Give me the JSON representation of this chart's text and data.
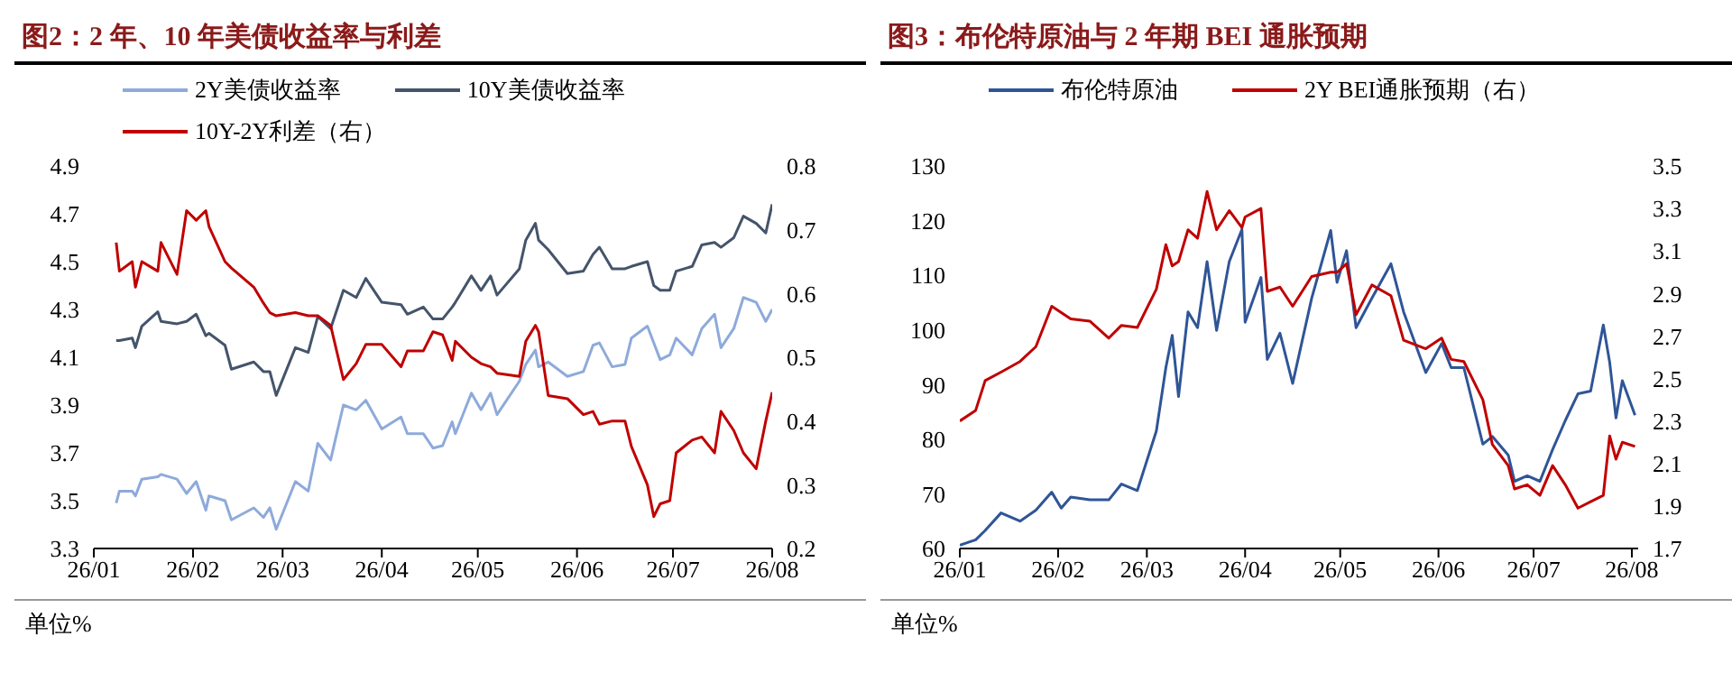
{
  "chart_data": [
    {
      "type": "line",
      "title": "图2：2 年、10 年美债收益率与利差",
      "annotations": [
        "单位%"
      ],
      "legend": "top",
      "grid": false,
      "marker": "none",
      "line_style": "solid",
      "x": [
        "--01-08",
        "--01-09",
        "--01-13",
        "--01-14",
        "--01-16",
        "--01-21",
        "--01-22",
        "--01-27",
        "--01-30",
        "--02-02",
        "--02-05",
        "--02-06",
        "--02-11",
        "--02-13",
        "--02-20",
        "--02-23",
        "--02-25",
        "--02-27",
        "--03-05",
        "--03-09",
        "--03-12",
        "--03-16",
        "--03-20",
        "--03-24",
        "--03-27",
        "--04-01",
        "--04-07",
        "--04-09",
        "--04-14",
        "--04-17",
        "--04-20",
        "--04-23",
        "--04-24",
        "--04-29",
        "--05-02",
        "--05-05",
        "--05-07",
        "--05-14",
        "--05-16",
        "--05-19",
        "--05-20",
        "--05-23",
        "--05-29",
        "--06-03",
        "--06-06",
        "--06-08",
        "--06-12",
        "--06-16",
        "--06-18",
        "--06-23",
        "--06-25",
        "--06-27",
        "--06-30",
        "--07-02",
        "--07-07",
        "--07-10",
        "--07-14",
        "--07-16",
        "--07-20",
        "--07-23",
        "--07-27",
        "--07-30",
        "--08-01"
      ],
      "xlim": [
        "--01-01",
        "--08-01"
      ],
      "xticks": [
        {
          "value": "--01-01",
          "label": "26/01"
        },
        {
          "value": "--02-01",
          "label": "26/02"
        },
        {
          "value": "--03-01",
          "label": "26/03"
        },
        {
          "value": "--04-01",
          "label": "26/04"
        },
        {
          "value": "--05-01",
          "label": "26/05"
        },
        {
          "value": "--06-01",
          "label": "26/06"
        },
        {
          "value": "--07-01",
          "label": "26/07"
        },
        {
          "value": "--08-01",
          "label": "26/08"
        }
      ],
      "ylim": [
        3.3,
        4.9
      ],
      "yticks": [
        3.3,
        3.5,
        3.7,
        3.9,
        4.1,
        4.3,
        4.5,
        4.7,
        4.9
      ],
      "y2lim": [
        0.2,
        0.8
      ],
      "y2ticks": [
        0.2,
        0.3,
        0.4,
        0.5,
        0.6,
        0.7,
        0.8
      ],
      "series": [
        {
          "name": "2Y美债收益率",
          "color": "#8eaadb",
          "values": [
            3.49,
            3.54,
            3.54,
            3.52,
            3.59,
            3.6,
            3.61,
            3.59,
            3.53,
            3.58,
            3.46,
            3.52,
            3.5,
            3.42,
            3.47,
            3.43,
            3.47,
            3.38,
            3.58,
            3.54,
            3.74,
            3.67,
            3.9,
            3.88,
            3.92,
            3.8,
            3.85,
            3.78,
            3.78,
            3.72,
            3.73,
            3.83,
            3.78,
            3.95,
            3.88,
            3.95,
            3.86,
            4.0,
            4.07,
            4.13,
            4.06,
            4.08,
            4.02,
            4.04,
            4.15,
            4.16,
            4.06,
            4.07,
            4.18,
            4.23,
            4.16,
            4.09,
            4.11,
            4.18,
            4.11,
            4.22,
            4.28,
            4.14,
            4.22,
            4.35,
            4.33,
            4.25,
            4.3
          ]
        },
        {
          "name": "10Y美债收益率",
          "color": "#44546a",
          "values": [
            4.17,
            4.17,
            4.18,
            4.14,
            4.23,
            4.29,
            4.25,
            4.24,
            4.25,
            4.28,
            4.19,
            4.2,
            4.15,
            4.05,
            4.08,
            4.04,
            4.04,
            3.94,
            4.14,
            4.12,
            4.27,
            4.22,
            4.38,
            4.35,
            4.43,
            4.33,
            4.32,
            4.28,
            4.31,
            4.26,
            4.26,
            4.31,
            4.33,
            4.44,
            4.38,
            4.44,
            4.36,
            4.47,
            4.59,
            4.66,
            4.59,
            4.55,
            4.45,
            4.46,
            4.53,
            4.56,
            4.47,
            4.47,
            4.48,
            4.5,
            4.4,
            4.38,
            4.38,
            4.46,
            4.48,
            4.57,
            4.58,
            4.56,
            4.6,
            4.69,
            4.66,
            4.62,
            4.74
          ]
        },
        {
          "name": "10Y-2Y利差（右）",
          "color": "#c00000",
          "axis": "y2",
          "values": [
            0.68,
            0.635,
            0.65,
            0.61,
            0.65,
            0.635,
            0.68,
            0.63,
            0.73,
            0.715,
            0.73,
            0.705,
            0.65,
            0.64,
            0.61,
            0.585,
            0.57,
            0.565,
            0.57,
            0.565,
            0.565,
            0.55,
            0.465,
            0.49,
            0.52,
            0.52,
            0.485,
            0.51,
            0.51,
            0.54,
            0.535,
            0.495,
            0.525,
            0.5,
            0.49,
            0.485,
            0.475,
            0.47,
            0.525,
            0.55,
            0.54,
            0.44,
            0.435,
            0.41,
            0.415,
            0.395,
            0.4,
            0.4,
            0.36,
            0.3,
            0.25,
            0.27,
            0.275,
            0.35,
            0.37,
            0.375,
            0.35,
            0.415,
            0.385,
            0.35,
            0.325,
            0.4,
            0.445
          ]
        }
      ]
    },
    {
      "type": "line",
      "title": "图3：布伦特原油与 2 年期 BEI 通胀预期",
      "annotations": [
        "单位%"
      ],
      "legend": "top",
      "grid": false,
      "marker": "none",
      "line_style": "solid",
      "x": [
        "--01-01",
        "--01-06",
        "--01-09",
        "--01-14",
        "--01-20",
        "--01-25",
        "--01-30",
        "--02-02",
        "--02-05",
        "--02-11",
        "--02-17",
        "--02-21",
        "--02-26",
        "--03-04",
        "--03-07",
        "--03-09",
        "--03-11",
        "--03-14",
        "--03-17",
        "--03-20",
        "--03-23",
        "--03-27",
        "--03-31",
        "--04-01",
        "--04-06",
        "--04-08",
        "--04-12",
        "--04-16",
        "--04-22",
        "--04-28",
        "--04-30",
        "--05-03",
        "--05-06",
        "--05-11",
        "--05-17",
        "--05-21",
        "--05-28",
        "--06-02",
        "--06-05",
        "--06-09",
        "--06-15",
        "--06-18",
        "--06-23",
        "--06-25",
        "--06-29",
        "--07-03",
        "--07-07",
        "--07-11",
        "--07-15",
        "--07-19",
        "--07-23",
        "--07-25",
        "--07-27",
        "--07-29",
        "--08-02"
      ],
      "xlim": [
        "--01-01",
        "--08-03"
      ],
      "xticks": [
        {
          "value": "--01-01",
          "label": "26/01"
        },
        {
          "value": "--02-01",
          "label": "26/02"
        },
        {
          "value": "--03-01",
          "label": "26/03"
        },
        {
          "value": "--04-01",
          "label": "26/04"
        },
        {
          "value": "--05-01",
          "label": "26/05"
        },
        {
          "value": "--06-01",
          "label": "26/06"
        },
        {
          "value": "--07-01",
          "label": "26/07"
        },
        {
          "value": "--08-01",
          "label": "26/08"
        }
      ],
      "ylim": [
        60,
        130
      ],
      "yticks": [
        60,
        70,
        80,
        90,
        100,
        110,
        120,
        130
      ],
      "y2lim": [
        1.7,
        3.5
      ],
      "y2ticks": [
        1.7,
        1.9,
        2.1,
        2.3,
        2.5,
        2.7,
        2.9,
        3.1,
        3.3,
        3.5
      ],
      "series": [
        {
          "name": "布伦特原油",
          "color": "#2f5597",
          "values": [
            60.6,
            61.6,
            63.3,
            66.5,
            65,
            67,
            70.3,
            67.4,
            69.4,
            68.9,
            68.9,
            71.8,
            70.6,
            81.5,
            93.1,
            99.0,
            87.8,
            103.3,
            100.4,
            112.5,
            99.9,
            112.5,
            118.4,
            101.4,
            109.6,
            94.6,
            99.4,
            90.2,
            105.8,
            118.2,
            108.7,
            114.5,
            100.4,
            105.8,
            112.1,
            103.3,
            92.2,
            97.5,
            93.1,
            93.1,
            79.1,
            80.5,
            77.1,
            72.3,
            73.3,
            72.3,
            78.1,
            83.4,
            88.3,
            88.8,
            100.9,
            94.1,
            83.9,
            90.7,
            84.4
          ]
        },
        {
          "name": "2Y BEI通胀预期（右）",
          "color": "#c00000",
          "axis": "y2",
          "values": [
            2.3,
            2.35,
            2.49,
            2.53,
            2.58,
            2.65,
            2.84,
            2.81,
            2.78,
            2.77,
            2.69,
            2.75,
            2.74,
            2.92,
            3.13,
            3.03,
            3.05,
            3.2,
            3.16,
            3.38,
            3.2,
            3.29,
            3.21,
            3.26,
            3.3,
            2.91,
            2.93,
            2.84,
            2.98,
            3.0,
            3.0,
            3.04,
            2.8,
            2.94,
            2.89,
            2.68,
            2.64,
            2.69,
            2.59,
            2.58,
            2.4,
            2.19,
            2.09,
            1.98,
            2.0,
            1.95,
            2.09,
            2.0,
            1.89,
            1.92,
            1.95,
            2.23,
            2.12,
            2.2,
            2.18
          ]
        }
      ]
    }
  ]
}
